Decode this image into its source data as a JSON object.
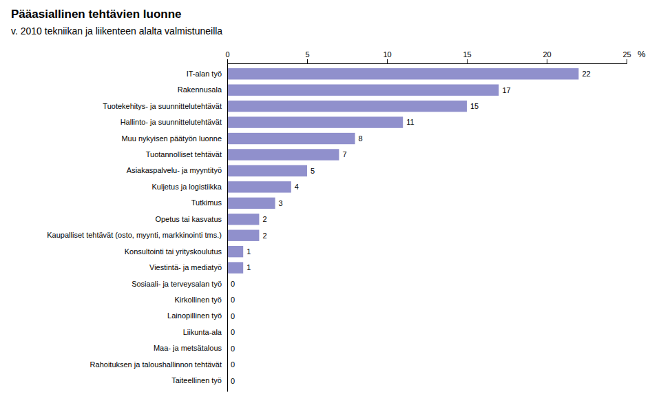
{
  "chart_data": {
    "type": "bar",
    "orientation": "horizontal",
    "title": "Pääasiallinen tehtävien luonne",
    "subtitle": "v. 2010 tekniikan ja liikenteen alalta valmistuneilla",
    "xlabel": "%",
    "categories": [
      "IT-alan työ",
      "Rakennusala",
      "Tuotekehitys- ja suunnittelutehtävät",
      "Hallinto- ja suunnittelutehtävät",
      "Muu nykyisen päätyön luonne",
      "Tuotannolliset tehtävät",
      "Asiakaspalvelu- ja myyntityö",
      "Kuljetus ja logistiikka",
      "Tutkimus",
      "Opetus tai kasvatus",
      "Kaupalliset tehtävät (osto, myynti, markkinointi tms.)",
      "Konsultointi tai yrityskoulutus",
      "Viestintä- ja mediatyö",
      "Sosiaali- ja terveysalan työ",
      "Kirkollinen työ",
      "Lainopillinen työ",
      "Liikunta-ala",
      "Maa- ja metsätalous",
      "Rahoituksen ja taloushallinnon tehtävät",
      "Taiteellinen työ"
    ],
    "values": [
      22,
      17,
      15,
      11,
      8,
      7,
      5,
      4,
      3,
      2,
      2,
      1,
      1,
      0,
      0,
      0,
      0,
      0,
      0,
      0
    ],
    "color": "#9090cc",
    "xlim": [
      0,
      25
    ],
    "xticks": [
      0,
      5,
      10,
      15,
      20,
      25
    ],
    "data_labels": true,
    "grid": false
  }
}
